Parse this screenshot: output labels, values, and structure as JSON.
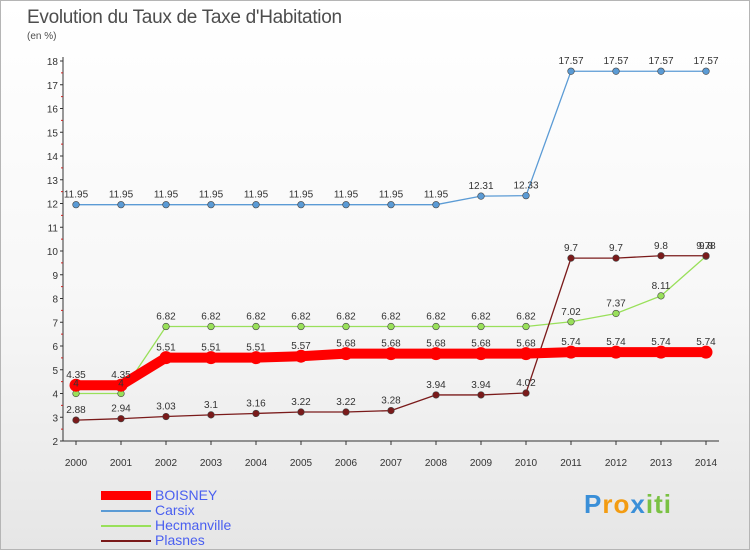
{
  "title": "Evolution du Taux de Taxe d'Habitation",
  "subtitle": "(en %)",
  "colors": {
    "BOISNEY": "#ff0000",
    "Carsix": "#5b9bd5",
    "Hecmanville": "#99e05a",
    "Plasnes": "#7a1a1a"
  },
  "logo": {
    "letters": [
      "P",
      "r",
      "o",
      "x",
      "i",
      "t",
      "i"
    ],
    "colors": [
      "#3a8fd8",
      "#f39c12",
      "#f39c12",
      "#3a8fd8",
      "#7ac143",
      "#7ac143",
      "#7ac143"
    ]
  },
  "chart_data": {
    "type": "line",
    "title": "Evolution du Taux de Taxe d'Habitation",
    "ylabel": "(en %)",
    "xlabel": "",
    "x": [
      "2000",
      "2001",
      "2002",
      "2003",
      "2004",
      "2005",
      "2006",
      "2007",
      "2008",
      "2009",
      "2010",
      "2011",
      "2012",
      "2013",
      "2014"
    ],
    "ylim": [
      2,
      18
    ],
    "yticks": [
      "2",
      "3",
      "4",
      "5",
      "6",
      "7",
      "8",
      "9",
      "10",
      "11",
      "12",
      "13",
      "14",
      "15",
      "16",
      "17",
      "18"
    ],
    "grid": false,
    "legend": "bottom-left",
    "series": [
      {
        "name": "Carsix",
        "values": [
          11.95,
          11.95,
          11.95,
          11.95,
          11.95,
          11.95,
          11.95,
          11.95,
          11.95,
          12.31,
          12.33,
          17.57,
          17.57,
          17.57,
          17.57
        ],
        "labels": [
          "11.95",
          "11.95",
          "11.95",
          "11.95",
          "11.95",
          "11.95",
          "11.95",
          "11.95",
          "11.95",
          "12.31",
          "12.33",
          "17.57",
          "17.57",
          "17.57",
          "17.57"
        ]
      },
      {
        "name": "Hecmanville",
        "values": [
          4,
          4,
          6.82,
          6.82,
          6.82,
          6.82,
          6.82,
          6.82,
          6.82,
          6.82,
          6.82,
          7.02,
          7.37,
          8.11,
          9.78
        ],
        "labels": [
          "4",
          "4",
          "6.82",
          "6.82",
          "6.82",
          "6.82",
          "6.82",
          "6.82",
          "6.82",
          "6.82",
          "6.82",
          "7.02",
          "7.37",
          "8.11",
          "9.78"
        ]
      },
      {
        "name": "Plasnes",
        "values": [
          2.88,
          2.94,
          3.03,
          3.1,
          3.16,
          3.22,
          3.22,
          3.28,
          3.94,
          3.94,
          4.02,
          9.7,
          9.7,
          9.8,
          9.8
        ],
        "labels": [
          "2.88",
          "2.94",
          "3.03",
          "3.1",
          "3.16",
          "3.22",
          "3.22",
          "3.28",
          "3.94",
          "3.94",
          "4.02",
          "9.7",
          "9.7",
          "9.8",
          "9.8"
        ]
      },
      {
        "name": "BOISNEY",
        "values": [
          4.35,
          4.35,
          5.51,
          5.51,
          5.51,
          5.57,
          5.68,
          5.68,
          5.68,
          5.68,
          5.68,
          5.74,
          5.74,
          5.74,
          5.74
        ],
        "labels": [
          "4.35",
          "4.35",
          "5.51",
          "5.51",
          "5.51",
          "5.57",
          "5.68",
          "5.68",
          "5.68",
          "5.68",
          "5.68",
          "5.74",
          "5.74",
          "5.74",
          "5.74"
        ]
      }
    ]
  },
  "legend": [
    {
      "name": "BOISNEY"
    },
    {
      "name": "Carsix"
    },
    {
      "name": "Hecmanville"
    },
    {
      "name": "Plasnes"
    }
  ]
}
